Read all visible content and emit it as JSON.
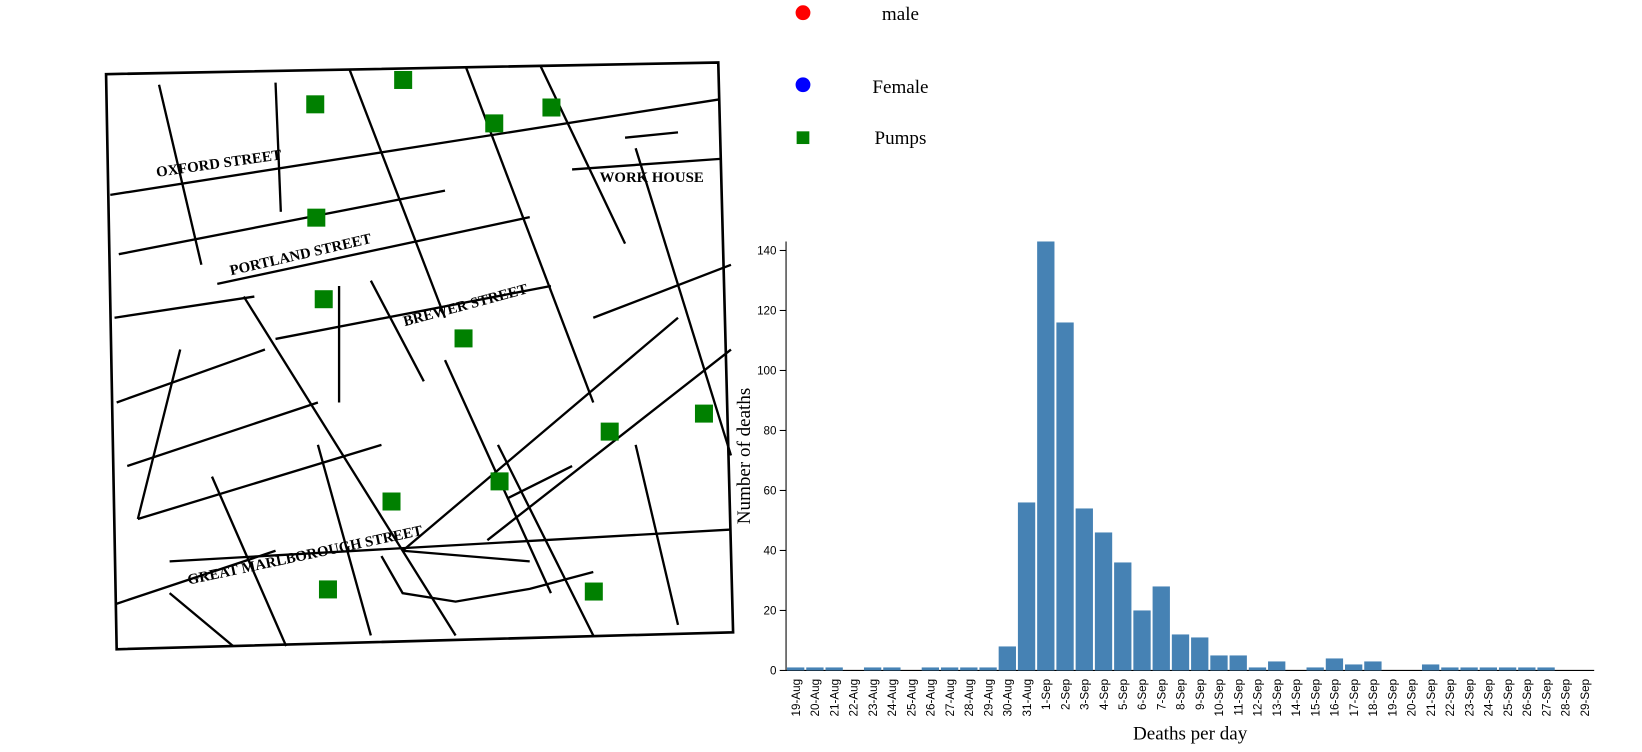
{
  "map": {
    "street_labels": [
      "OXFORD STREET",
      "PORTLAND STREET",
      "BREWER STREET",
      "GREAT MARLBOROUGH STREET",
      "WORK HOUSE"
    ]
  },
  "legend": {
    "entries": [
      {
        "label": "male",
        "color": "#ff0000"
      },
      {
        "label": "Female",
        "color": "#0000ff"
      },
      {
        "label": "Pumps",
        "color": "#008000"
      }
    ]
  },
  "chart_data": {
    "type": "bar",
    "x_label": "Deaths per day",
    "y_label": "Number of deaths",
    "color": "#4682b4",
    "categories": [
      "19-Aug",
      "20-Aug",
      "21-Aug",
      "22-Aug",
      "23-Aug",
      "24-Aug",
      "25-Aug",
      "26-Aug",
      "27-Aug",
      "28-Aug",
      "29-Aug",
      "30-Aug",
      "31-Aug",
      "1-Sep",
      "2-Sep",
      "3-Sep",
      "4-Sep",
      "5-Sep",
      "6-Sep",
      "7-Sep",
      "8-Sep",
      "9-Sep",
      "10-Sep",
      "11-Sep",
      "12-Sep",
      "13-Sep",
      "14-Sep",
      "15-Sep",
      "16-Sep",
      "17-Sep",
      "18-Sep",
      "19-Sep",
      "20-Sep",
      "21-Sep",
      "22-Sep",
      "23-Sep",
      "24-Sep",
      "25-Sep",
      "26-Sep",
      "27-Sep",
      "28-Sep",
      "29-Sep"
    ],
    "values": [
      1,
      1,
      1,
      0,
      1,
      1,
      0,
      1,
      1,
      1,
      1,
      8,
      56,
      143,
      116,
      54,
      46,
      36,
      20,
      28,
      12,
      11,
      5,
      5,
      1,
      3,
      0,
      1,
      4,
      2,
      3,
      0,
      0,
      2,
      1,
      1,
      1,
      1,
      1,
      1,
      0,
      0
    ],
    "ylim": [
      0,
      143
    ],
    "yticks": [
      0,
      20,
      40,
      60,
      80,
      100,
      120,
      140
    ]
  }
}
